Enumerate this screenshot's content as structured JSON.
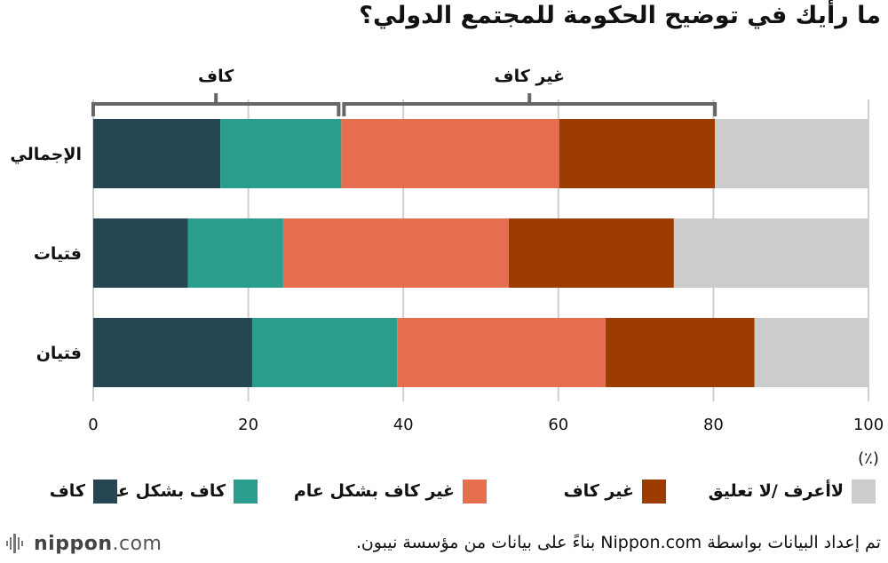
{
  "title": "ما رأيك في توضيح الحكومة للمجتمع الدولي؟",
  "unit_label": "(٪)",
  "brackets": {
    "left_label": "كاف",
    "right_label": "غير كاف"
  },
  "chart_data": {
    "type": "bar",
    "orientation": "horizontal",
    "stacked": true,
    "categories": [
      "الإجمالي",
      "فتيات",
      "فتيان"
    ],
    "series": [
      {
        "name": "كاف",
        "color": "#264653",
        "values": [
          16.4,
          12.2,
          20.5
        ]
      },
      {
        "name": "كاف بشكل عام",
        "color": "#2a9d8f",
        "values": [
          15.6,
          12.3,
          18.7
        ]
      },
      {
        "name": "غير كاف بشكل عام",
        "color": "#e76f51",
        "values": [
          28.1,
          29.1,
          26.9
        ]
      },
      {
        "name": "غير كاف",
        "color": "#9c3c00",
        "values": [
          20.1,
          21.3,
          19.2
        ]
      },
      {
        "name": "لاأعرف /لا تعليق",
        "color": "#cccccc",
        "values": [
          19.8,
          25.1,
          14.7
        ]
      }
    ],
    "xlim": [
      0,
      100
    ],
    "xticks": [
      0,
      20,
      40,
      60,
      80,
      100
    ],
    "grid": true,
    "legend_position": "bottom"
  },
  "footer": {
    "logo_brand": "nippon",
    "logo_suffix": ".com",
    "source": "تم إعداد البيانات بواسطة Nippon.com بناءً على بيانات من مؤسسة نيبون."
  }
}
